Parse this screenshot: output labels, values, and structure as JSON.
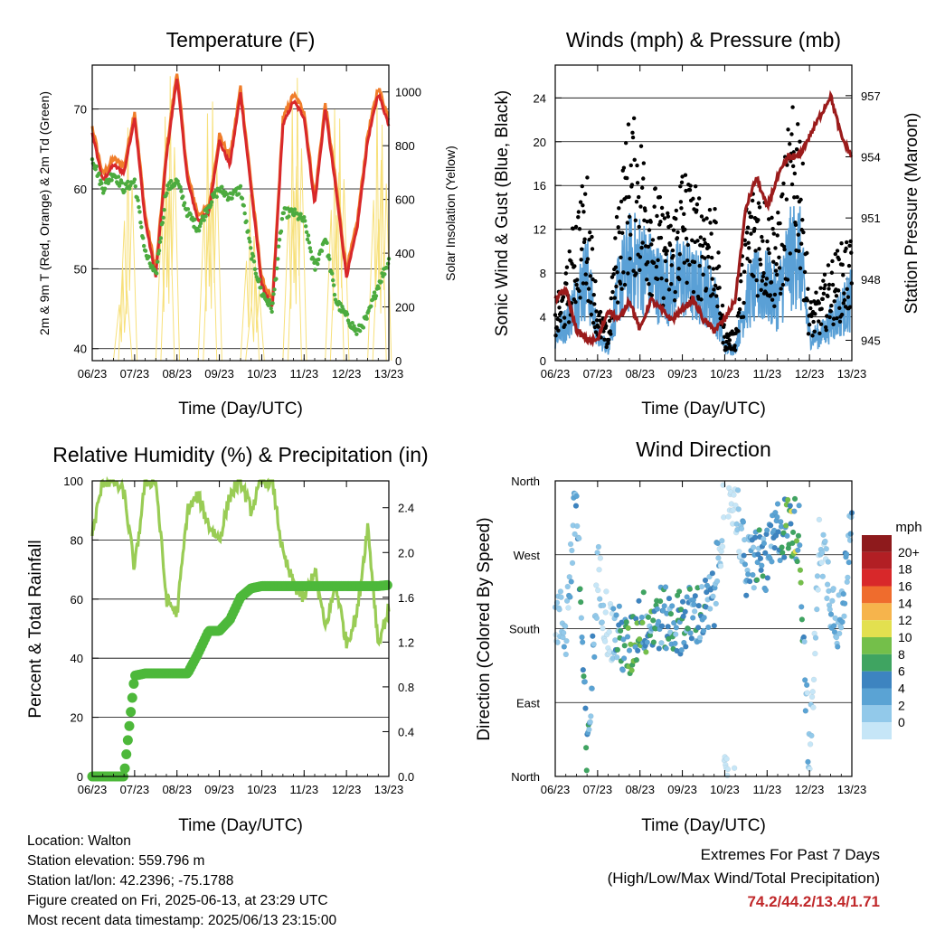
{
  "panels": {
    "temperature": {
      "title": "Temperature (F)",
      "ylabel_left": "2m & 9m T (Red, Orange) & 2m Td (Green)",
      "ylabel_right": "Solar Insolation (Yellow)",
      "xlabel": "Time (Day/UTC)",
      "yticks_left": [
        "40",
        "50",
        "60",
        "70"
      ],
      "yticks_right": [
        "0",
        "200",
        "400",
        "600",
        "800",
        "1000"
      ]
    },
    "winds": {
      "title": "Winds (mph) & Pressure (mb)",
      "ylabel_left": "Sonic Wind & Gust (Blue, Black)",
      "ylabel_right": "Station Pressure (Maroon)",
      "xlabel": "Time (Day/UTC)",
      "yticks_left": [
        "0",
        "4",
        "8",
        "12",
        "16",
        "20",
        "24"
      ],
      "yticks_right": [
        "945",
        "948",
        "951",
        "954",
        "957"
      ]
    },
    "humidity": {
      "title": "Relative Humidity (%) & Precipitation (in)",
      "ylabel_left": "Percent & Total Rainfall",
      "xlabel": "Time (Day/UTC)",
      "yticks_left": [
        "0",
        "20",
        "40",
        "60",
        "80",
        "100"
      ],
      "yticks_right": [
        "0.0",
        "0.4",
        "0.8",
        "1.2",
        "1.6",
        "2.0",
        "2.4"
      ]
    },
    "direction": {
      "title": "Wind Direction",
      "ylabel_left": "Direction (Colored By Speed)",
      "xlabel": "Time (Day/UTC)",
      "yticks_left": [
        "North",
        "East",
        "South",
        "West",
        "North"
      ],
      "colorbar_title": "mph",
      "colorbar_labels": [
        "0",
        "2",
        "4",
        "6",
        "8",
        "10",
        "12",
        "14",
        "16",
        "18",
        "20+"
      ],
      "colorbar_colors": [
        "#c6e6f7",
        "#92c9ea",
        "#5aa3d4",
        "#3d84c0",
        "#3fa461",
        "#74bf4a",
        "#e3e04f",
        "#f6b44c",
        "#ef6c2d",
        "#d8282a",
        "#b21f24",
        "#8e1a1c"
      ]
    }
  },
  "xticks": [
    "06/23",
    "07/23",
    "08/23",
    "09/23",
    "10/23",
    "11/23",
    "12/23",
    "13/23"
  ],
  "info": {
    "location": "Location: Walton",
    "elevation": "Station elevation: 559.796 m",
    "latlon": "Station lat/lon: 42.2396; -75.1788",
    "created": "Figure created on Fri, 2025-06-13, at 23:29 UTC",
    "recent": "Most recent data timestamp: 2025/06/13 23:15:00"
  },
  "extremes": {
    "title": "Extremes For Past 7 Days",
    "subtitle": "(High/Low/Max Wind/Total Precipitation)",
    "values": "74.2/44.2/13.4/1.71"
  },
  "colors": {
    "temp2m": "#d8282a",
    "temp9m": "#f07d2a",
    "dewpoint": "#4cab3f",
    "solar": "#f7e07a",
    "wind": "#5aa0d6",
    "gust": "#000000",
    "pressure": "#9b1b1b",
    "rh": "#99cc55",
    "precip": "#4db83a"
  },
  "chart_data": [
    {
      "type": "line",
      "title": "Temperature (F)",
      "xlabel": "Time (Day/UTC)",
      "ylabel": "2m & 9m T (Red, Orange) & 2m Td (Green)",
      "y2label": "Solar Insolation (Yellow)",
      "x": [
        6.0,
        6.25,
        6.5,
        6.75,
        7.0,
        7.25,
        7.5,
        7.75,
        8.0,
        8.25,
        8.5,
        8.75,
        9.0,
        9.25,
        9.5,
        9.75,
        10.0,
        10.25,
        10.5,
        10.75,
        11.0,
        11.25,
        11.5,
        11.75,
        12.0,
        12.25,
        12.5,
        12.75,
        13.0
      ],
      "ylim": [
        38.5,
        75.5
      ],
      "y2lim": [
        0,
        1100
      ],
      "series": [
        {
          "name": "2m T",
          "values": [
            67,
            61,
            63,
            62,
            69,
            56,
            49,
            64,
            74,
            61,
            56,
            57,
            66,
            63,
            72,
            60,
            48,
            45,
            68,
            71,
            69,
            58,
            70,
            60,
            49,
            55,
            66,
            72,
            68
          ]
        },
        {
          "name": "2m Td",
          "values": [
            64,
            60,
            62,
            60,
            61,
            52,
            49,
            60,
            61,
            57,
            55,
            58,
            60,
            59,
            60,
            52,
            47,
            45,
            57,
            57,
            56,
            50,
            54,
            46,
            44,
            42,
            44,
            48,
            51
          ]
        }
      ]
    },
    {
      "type": "line",
      "title": "Winds (mph) & Pressure (mb)",
      "xlabel": "Time (Day/UTC)",
      "ylabel": "Sonic Wind & Gust (Blue, Black)",
      "y2label": "Station Pressure (Maroon)",
      "x": [
        6.0,
        6.25,
        6.5,
        6.75,
        7.0,
        7.25,
        7.5,
        7.75,
        8.0,
        8.25,
        8.5,
        8.75,
        9.0,
        9.25,
        9.5,
        9.75,
        10.0,
        10.25,
        10.5,
        10.75,
        11.0,
        11.25,
        11.5,
        11.75,
        12.0,
        12.25,
        12.5,
        12.75,
        13.0
      ],
      "ylim": [
        0,
        27
      ],
      "y2lim": [
        944,
        958.5
      ],
      "series": [
        {
          "name": "Sonic Wind",
          "values": [
            2,
            3,
            5,
            7,
            2,
            1,
            6,
            8,
            8,
            7,
            6,
            6,
            7,
            6,
            6,
            5,
            1,
            1,
            5,
            6,
            6,
            5,
            8,
            9,
            2,
            2,
            3,
            4,
            5
          ]
        },
        {
          "name": "Gust",
          "values": [
            4,
            6,
            11,
            13,
            4,
            2,
            12,
            17,
            16,
            13,
            11,
            10,
            14,
            12,
            12,
            11,
            2,
            2,
            11,
            13,
            11,
            10,
            16,
            19,
            4,
            5,
            7,
            8,
            9
          ]
        },
        {
          "name": "Station Pressure",
          "values": [
            947,
            947.5,
            945.5,
            945,
            945,
            946.5,
            946,
            947,
            945.5,
            947,
            946.5,
            946,
            946.5,
            947,
            946,
            945.5,
            946,
            947,
            951.5,
            953,
            951.5,
            953,
            954,
            954,
            955,
            956,
            957,
            955,
            954
          ]
        }
      ]
    },
    {
      "type": "line",
      "title": "Relative Humidity (%) & Precipitation (in)",
      "xlabel": "Time (Day/UTC)",
      "ylabel": "Percent & Total Rainfall",
      "x": [
        6.0,
        6.25,
        6.5,
        6.75,
        7.0,
        7.25,
        7.5,
        7.75,
        8.0,
        8.25,
        8.5,
        8.75,
        9.0,
        9.25,
        9.5,
        9.75,
        10.0,
        10.25,
        10.5,
        10.75,
        11.0,
        11.25,
        11.5,
        11.75,
        12.0,
        12.25,
        12.5,
        12.75,
        13.0
      ],
      "ylim": [
        0,
        100
      ],
      "y2lim": [
        0,
        2.64
      ],
      "series": [
        {
          "name": "Relative Humidity",
          "values": [
            82,
            100,
            100,
            96,
            70,
            100,
            100,
            60,
            55,
            90,
            95,
            85,
            80,
            95,
            100,
            90,
            100,
            100,
            75,
            65,
            60,
            70,
            50,
            65,
            45,
            55,
            85,
            45,
            57
          ]
        },
        {
          "name": "Total Precipitation",
          "values": [
            0,
            0,
            0,
            0,
            0.9,
            0.92,
            0.92,
            0.92,
            0.92,
            0.92,
            1.1,
            1.3,
            1.3,
            1.4,
            1.6,
            1.68,
            1.7,
            1.7,
            1.7,
            1.7,
            1.7,
            1.7,
            1.7,
            1.7,
            1.7,
            1.7,
            1.7,
            1.7,
            1.71
          ]
        }
      ]
    },
    {
      "type": "scatter",
      "title": "Wind Direction",
      "xlabel": "Time (Day/UTC)",
      "ylabel": "Direction (Colored By Speed)",
      "yticks": [
        "North",
        "East",
        "South",
        "West",
        "North"
      ],
      "ylim": [
        0,
        360
      ],
      "x": [
        6.0,
        6.25,
        6.5,
        6.75,
        7.0,
        7.25,
        7.5,
        7.75,
        8.0,
        8.25,
        8.5,
        8.75,
        9.0,
        9.25,
        9.5,
        9.75,
        10.0,
        10.25,
        10.5,
        10.75,
        11.0,
        11.25,
        11.5,
        11.75,
        12.0,
        12.25,
        12.5,
        12.75,
        13.0
      ],
      "series": [
        {
          "name": "Direction",
          "values": [
            200,
            180,
            345,
            10,
            250,
            180,
            170,
            150,
            190,
            185,
            195,
            185,
            190,
            195,
            200,
            215,
            345,
            340,
            250,
            270,
            260,
            300,
            305,
            300,
            10,
            300,
            220,
            180,
            340
          ]
        }
      ]
    }
  ]
}
